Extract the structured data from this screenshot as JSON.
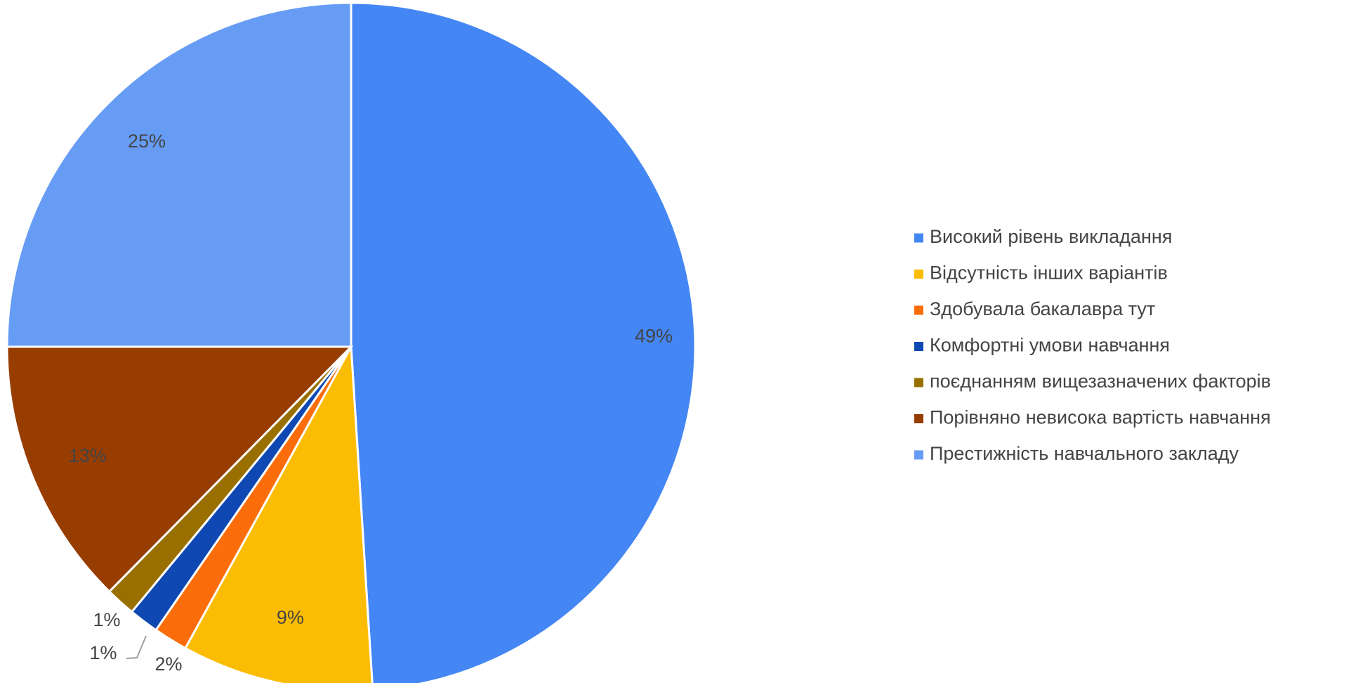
{
  "chart_data": {
    "type": "pie",
    "title": "",
    "legend_position": "right",
    "slices": [
      {
        "name": "Високий рівень викладання",
        "value": 49,
        "label": "49%",
        "color": "#4486f4"
      },
      {
        "name": "Відсутність інших варіантів",
        "value": 9,
        "label": "9%",
        "color": "#fbbc04"
      },
      {
        "name": "Здобувала бакалавра тут",
        "value": 1.6,
        "label": "2%",
        "color": "#fa6d0a"
      },
      {
        "name": "Комфортні умови навчання",
        "value": 1.4,
        "label": "1%",
        "color": "#0f48b3"
      },
      {
        "name": "поєднанням вищезазначених факторів",
        "value": 1.4,
        "label": "1%",
        "color": "#997000"
      },
      {
        "name": "Порівняно невисока вартість навчання",
        "value": 12.6,
        "label": "13%",
        "color": "#983d00"
      },
      {
        "name": "Престижність навчального закладу",
        "value": 25,
        "label": "25%",
        "color": "#679cf5"
      }
    ]
  }
}
